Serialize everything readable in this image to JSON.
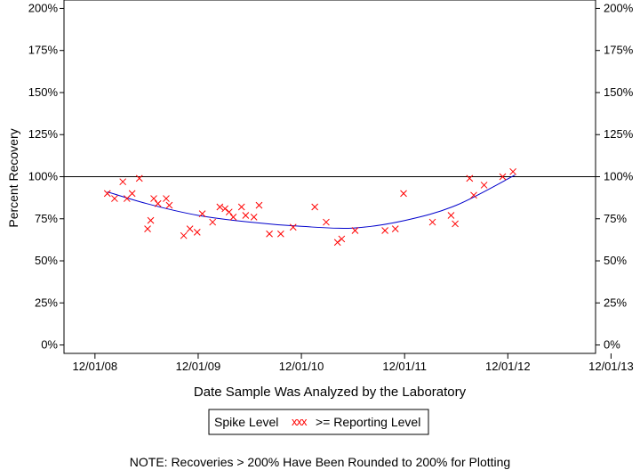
{
  "chart_data": {
    "type": "scatter",
    "xlabel": "Date Sample Was Analyzed by the Laboratory",
    "ylabel": "Percent Recovery",
    "x_ticks": [
      "12/01/08",
      "12/01/09",
      "12/01/10",
      "12/01/11",
      "12/01/12",
      "12/01/13"
    ],
    "xlim": [
      -0.3,
      4.85
    ],
    "ylim": [
      -5,
      205
    ],
    "y_ticks": [
      0,
      25,
      50,
      75,
      100,
      125,
      150,
      175,
      200
    ],
    "y_tick_labels": [
      "0%",
      "25%",
      "50%",
      "75%",
      "100%",
      "125%",
      "150%",
      "175%",
      "200%"
    ],
    "reference_line": 100,
    "series": [
      {
        "name": ">= Reporting Level",
        "marker": "x",
        "color": "#ff0000",
        "points": [
          [
            0.12,
            90
          ],
          [
            0.19,
            87
          ],
          [
            0.27,
            97
          ],
          [
            0.31,
            87
          ],
          [
            0.36,
            90
          ],
          [
            0.43,
            99
          ],
          [
            0.51,
            69
          ],
          [
            0.54,
            74
          ],
          [
            0.57,
            87
          ],
          [
            0.61,
            84
          ],
          [
            0.69,
            87
          ],
          [
            0.72,
            83
          ],
          [
            0.86,
            65
          ],
          [
            0.92,
            69
          ],
          [
            0.99,
            67
          ],
          [
            1.04,
            78
          ],
          [
            1.14,
            73
          ],
          [
            1.21,
            82
          ],
          [
            1.26,
            81
          ],
          [
            1.3,
            79
          ],
          [
            1.34,
            76
          ],
          [
            1.42,
            82
          ],
          [
            1.46,
            77
          ],
          [
            1.54,
            76
          ],
          [
            1.59,
            83
          ],
          [
            1.69,
            66
          ],
          [
            1.8,
            66
          ],
          [
            1.92,
            70
          ],
          [
            2.13,
            82
          ],
          [
            2.24,
            73
          ],
          [
            2.35,
            61
          ],
          [
            2.39,
            63
          ],
          [
            2.52,
            68
          ],
          [
            2.81,
            68
          ],
          [
            2.91,
            69
          ],
          [
            2.99,
            90
          ],
          [
            3.27,
            73
          ],
          [
            3.45,
            77
          ],
          [
            3.49,
            72
          ],
          [
            3.63,
            99
          ],
          [
            3.67,
            89
          ],
          [
            3.77,
            95
          ],
          [
            3.95,
            100
          ],
          [
            4.05,
            103
          ]
        ]
      }
    ],
    "trend_line": {
      "color": "#0000cc",
      "points": [
        [
          0.12,
          91
        ],
        [
          0.5,
          84
        ],
        [
          1.0,
          77
        ],
        [
          1.5,
          73
        ],
        [
          2.0,
          70.5
        ],
        [
          2.5,
          69.5
        ],
        [
          3.0,
          74
        ],
        [
          3.5,
          83
        ],
        [
          4.07,
          101
        ]
      ]
    },
    "legend": {
      "title": "Spike Level",
      "marker_text": "xxx",
      "entry": ">= Reporting Level",
      "placement": "bottom-center"
    },
    "note": "NOTE: Recoveries > 200% Have Been Rounded to 200% for Plotting"
  }
}
